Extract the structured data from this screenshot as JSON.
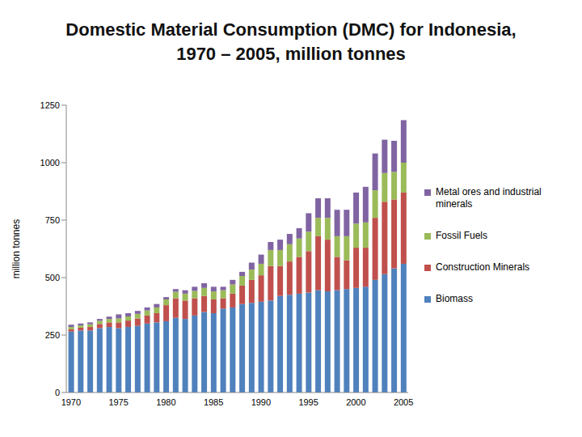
{
  "chart_data": {
    "type": "bar",
    "title": "Domestic Material Consumption (DMC) for Indonesia, 1970 – 2005, million tonnes",
    "y_label": "million tonnes",
    "stacked": true,
    "grid": false,
    "legend": "right",
    "categories": [
      "1970",
      null,
      null,
      null,
      null,
      "1975",
      null,
      null,
      null,
      null,
      "1980",
      null,
      null,
      null,
      null,
      "1985",
      null,
      null,
      null,
      null,
      "1990",
      null,
      null,
      null,
      null,
      "1995",
      null,
      null,
      null,
      null,
      "2000",
      null,
      null,
      null,
      null,
      "2005"
    ],
    "ylim": [
      0,
      1250
    ],
    "yticks": [
      0,
      250,
      500,
      750,
      1000,
      1250
    ],
    "series": [
      {
        "name": "Biomass",
        "color": "#4f81bd",
        "values": [
          265,
          270,
          270,
          280,
          285,
          280,
          285,
          290,
          300,
          305,
          310,
          325,
          320,
          335,
          350,
          345,
          365,
          370,
          385,
          390,
          395,
          400,
          420,
          425,
          430,
          435,
          445,
          440,
          445,
          450,
          455,
          460,
          490,
          515,
          540,
          560
        ]
      },
      {
        "name": "Construction Minerals",
        "color": "#c0504d",
        "values": [
          10,
          12,
          15,
          18,
          20,
          25,
          28,
          32,
          35,
          40,
          70,
          85,
          80,
          75,
          70,
          60,
          45,
          60,
          80,
          100,
          115,
          150,
          130,
          145,
          160,
          180,
          235,
          225,
          145,
          125,
          175,
          170,
          270,
          315,
          300,
          310
        ]
      },
      {
        "name": "Fossil Fuels",
        "color": "#9bbb59",
        "values": [
          10,
          10,
          12,
          14,
          15,
          17,
          18,
          20,
          22,
          25,
          25,
          28,
          30,
          32,
          35,
          35,
          35,
          40,
          42,
          45,
          50,
          70,
          70,
          75,
          80,
          85,
          80,
          95,
          90,
          105,
          105,
          110,
          120,
          125,
          120,
          130
        ]
      },
      {
        "name": "Metal ores and industrial minerals",
        "color": "#8064a2",
        "values": [
          10,
          8,
          8,
          8,
          10,
          18,
          14,
          13,
          13,
          15,
          10,
          12,
          15,
          18,
          20,
          20,
          15,
          20,
          18,
          30,
          40,
          35,
          45,
          45,
          45,
          80,
          85,
          85,
          115,
          115,
          135,
          155,
          160,
          145,
          135,
          185
        ]
      }
    ]
  }
}
